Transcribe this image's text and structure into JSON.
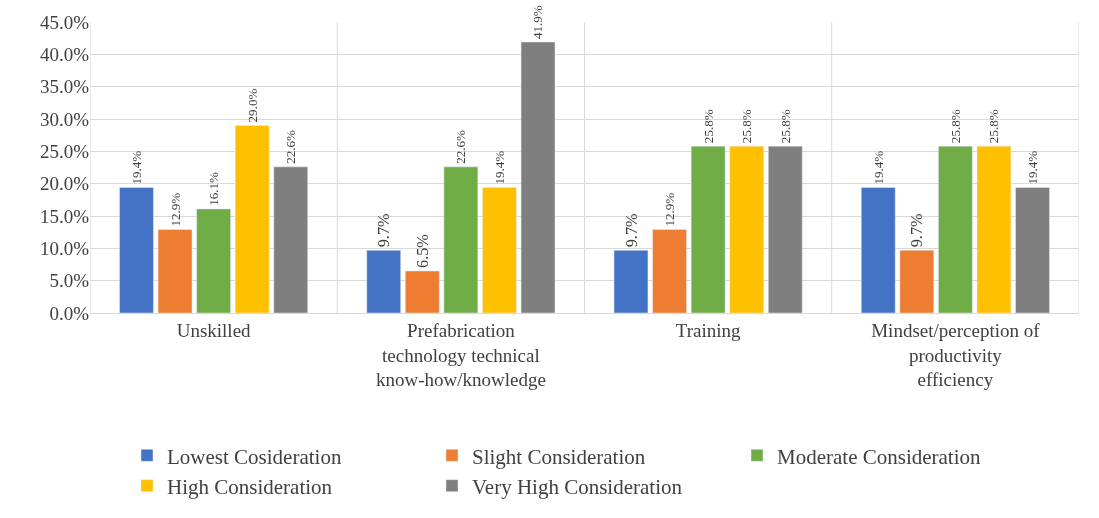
{
  "chart_data": {
    "type": "bar",
    "categories": [
      "Unskilled",
      "Prefabrication technology technical know-how/knowledge",
      "Training",
      "Mindset/perception of productivity efficiency"
    ],
    "series": [
      {
        "name": "Lowest Cosideration",
        "color": "#4472c4",
        "values": [
          19.4,
          9.7,
          9.7,
          19.4
        ],
        "value_labels": [
          "19.4%",
          "9.7%",
          "9.7%",
          "19.4%"
        ]
      },
      {
        "name": "Slight Consideration",
        "color": "#ed7d31",
        "values": [
          12.9,
          6.5,
          12.9,
          9.7
        ],
        "value_labels": [
          "12.9%",
          "6.5%",
          "12.9%",
          "9.7%"
        ]
      },
      {
        "name": "Moderate Consideration",
        "color": "#70ad47",
        "values": [
          16.1,
          22.6,
          25.8,
          25.8
        ],
        "value_labels": [
          "16.1%",
          "22.6%",
          "25.8%",
          "25.8%"
        ]
      },
      {
        "name": "High Consideration",
        "color": "#ffc000",
        "values": [
          29.0,
          19.4,
          25.8,
          25.8
        ],
        "value_labels": [
          "29.0%",
          "19.4%",
          "25.8%",
          "25.8%"
        ]
      },
      {
        "name": "Very High Consideration",
        "color": "#7f7f7f",
        "values": [
          22.6,
          41.9,
          25.8,
          19.4
        ],
        "value_labels": [
          "22.6%",
          "41.9%",
          "25.8%",
          "19.4%"
        ]
      }
    ],
    "ylim": [
      0,
      45
    ],
    "yticks": [
      {
        "value": 0,
        "label": "0.0%"
      },
      {
        "value": 5,
        "label": "5.0%"
      },
      {
        "value": 10,
        "label": "10.0%"
      },
      {
        "value": 15,
        "label": "15.0%"
      },
      {
        "value": 20,
        "label": "20.0%"
      },
      {
        "value": 25,
        "label": "25.0%"
      },
      {
        "value": 30,
        "label": "30.0%"
      },
      {
        "value": 35,
        "label": "35.0%"
      },
      {
        "value": 40,
        "label": "40.0%"
      },
      {
        "value": 45,
        "label": "45.0%"
      }
    ],
    "grid": true,
    "legend": "bottom"
  }
}
